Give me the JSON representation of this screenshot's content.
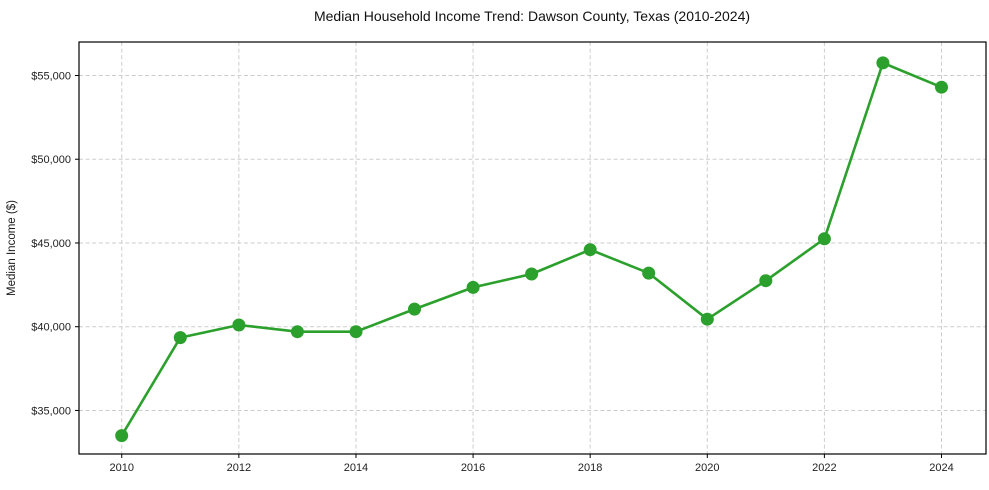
{
  "figure": {
    "background": "#ffffff",
    "frame_color": "#000000",
    "text_color": "#222222"
  },
  "chart_data": {
    "type": "line",
    "title": "Median Household Income Trend: Dawson County, Texas (2010-2024)",
    "xlabel": "",
    "ylabel": "Median Income ($)",
    "x": [
      2010,
      2011,
      2012,
      2013,
      2014,
      2015,
      2016,
      2017,
      2018,
      2019,
      2020,
      2021,
      2022,
      2023,
      2024
    ],
    "series": [
      {
        "name": "Median Household Income",
        "values": [
          33500,
          39350,
          40100,
          39700,
          39700,
          41050,
          42350,
          43150,
          44600,
          43200,
          40450,
          42750,
          45250,
          55750,
          54300
        ]
      }
    ],
    "x_ticks": [
      2010,
      2012,
      2014,
      2016,
      2018,
      2020,
      2022,
      2024
    ],
    "x_tick_labels": [
      "2010",
      "2012",
      "2014",
      "2016",
      "2018",
      "2020",
      "2022",
      "2024"
    ],
    "y_ticks": [
      35000,
      40000,
      45000,
      50000,
      55000
    ],
    "y_tick_labels": [
      "$35,000",
      "$40,000",
      "$45,000",
      "$50,000",
      "$55,000"
    ],
    "xlim": [
      2009.27,
      2024.76
    ],
    "ylim": [
      32400,
      57000
    ],
    "grid": true,
    "grid_style": "dashed",
    "grid_color": "#cdcdcd",
    "line_color": "#2ca02c",
    "marker": "circle",
    "marker_radius": 6.5,
    "line_width": 2.6,
    "legend_position": "none"
  }
}
